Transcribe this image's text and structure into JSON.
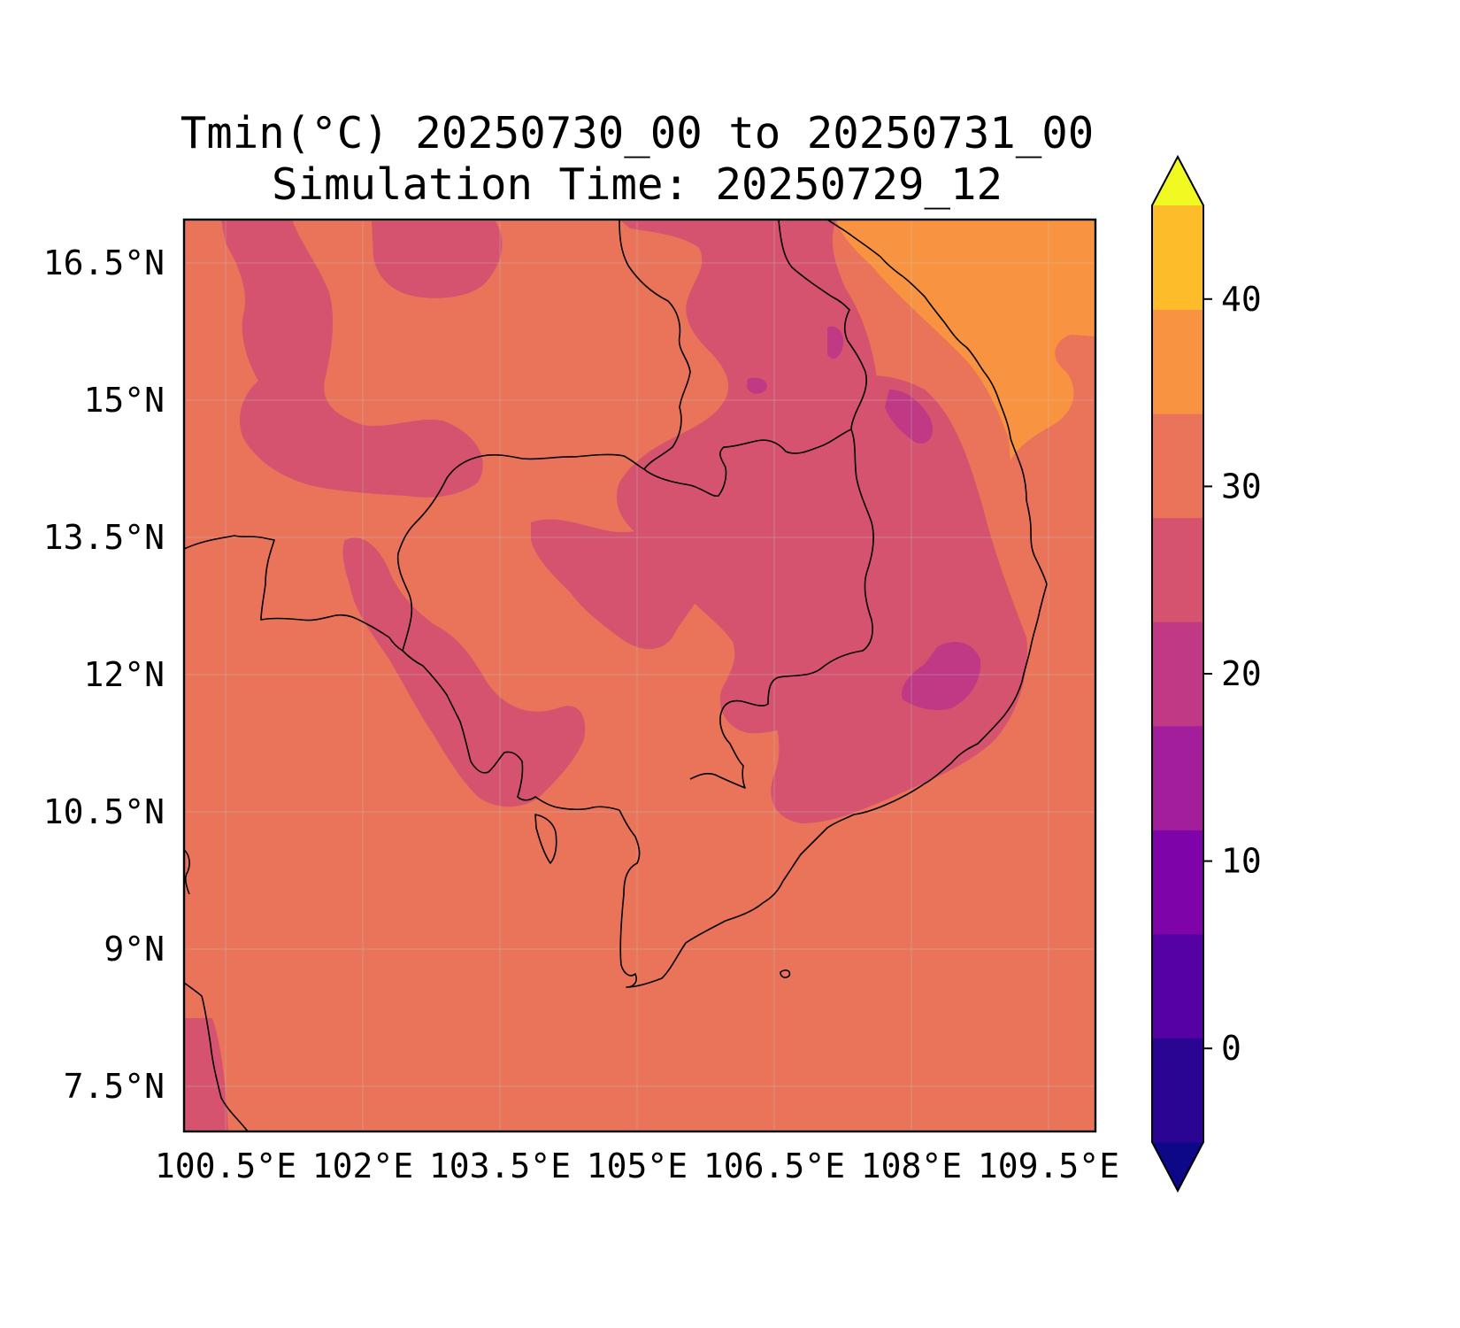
{
  "title": {
    "line1": "Tmin(°C) 20250730_00 to 20250731_00",
    "line2": "Simulation Time: 20250729_12"
  },
  "map": {
    "lon_range": [
      100.25,
      110.25
    ],
    "lat_range": [
      6.9,
      16.9
    ],
    "x_ticks": [
      "100.5°E",
      "102°E",
      "103.5°E",
      "105°E",
      "106.5°E",
      "108°E",
      "109.5°E"
    ],
    "y_ticks": [
      "16.5°N",
      "15°N",
      "13.5°N",
      "12°N",
      "10.5°N",
      "9°N",
      "7.5°N"
    ],
    "gridlines": true,
    "dominant_band_color": "#e9745a"
  },
  "colorbar": {
    "levels": [
      -5,
      0,
      5,
      10,
      15,
      20,
      25,
      30,
      35,
      40,
      45
    ],
    "colors": [
      "#0d0887",
      "#2a0593",
      "#5601a4",
      "#7e03a8",
      "#a21e9a",
      "#bf3984",
      "#d5536f",
      "#e9745a",
      "#f89441",
      "#fdbc2a",
      "#f0f921"
    ],
    "extend": "both",
    "tick_labels": [
      "0",
      "10",
      "20",
      "30",
      "40"
    ]
  }
}
